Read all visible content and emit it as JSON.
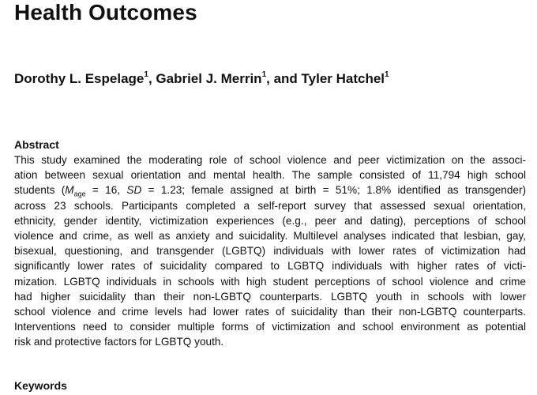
{
  "title": "Health Outcomes",
  "authors": [
    {
      "name": "Dorothy L. Espelage",
      "affiliation": "1",
      "separator": ", "
    },
    {
      "name": "Gabriel J. Merrin",
      "affiliation": "1",
      "separator": ", and "
    },
    {
      "name": "Tyler Hatchel",
      "affiliation": "1",
      "separator": ""
    }
  ],
  "abstract": {
    "heading": "Abstract",
    "lines": [
      "This study examined the moderating role of school violence and peer victimization on the associ-",
      "ation between sexual orientation and mental health. The sample consisted of 11,794 high school",
      {
        "pre": "students (",
        "m": "M",
        "m_sub": "age",
        "post": " = 16, ",
        "sd": "SD",
        "post2": " = 1.23; female assigned at birth = 51%; 1.8% identified as transgender)"
      },
      "across 23 schools. Participants completed a self-report survey that assessed sexual orientation,",
      "ethnicity, gender identity, victimization experiences (e.g., peer and dating), perceptions of school",
      "violence and crime, as well as anxiety and suicidality. Multilevel analyses indicated that lesbian, gay,",
      "bisexual, questioning, and transgender (LGBTQ) individuals with lower rates of victimization had",
      "significantly lower rates of suicidality compared to LGBTQ individuals with higher rates of victi-",
      "mization. LGBTQ individuals in schools with high student perceptions of school violence and crime",
      "had higher suicidality than their non-LGBTQ counterparts. LGBTQ youth in schools with lower",
      "school violence and crime levels had lower rates of suicidality than their non-LGBTQ counterparts.",
      "Interventions need to consider multiple forms of victimization and school environment as potential",
      "risk and protective factors for LGBTQ youth."
    ]
  },
  "keywords": {
    "heading": "Keywords"
  }
}
